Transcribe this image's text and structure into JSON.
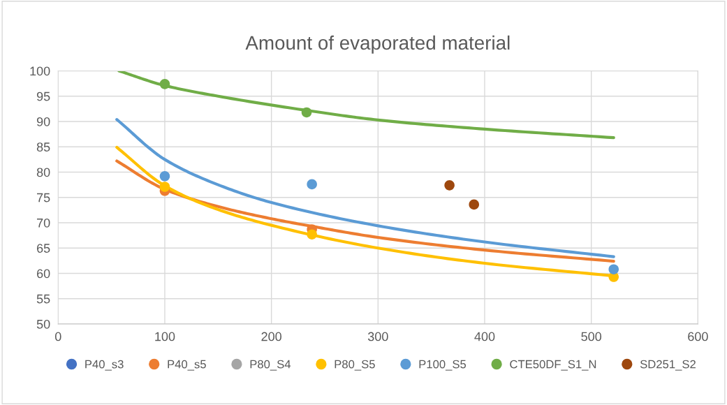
{
  "chart_data": {
    "type": "scatter",
    "title": "Amount of evaporated material",
    "xlim": [
      0,
      600
    ],
    "xticks": [
      0,
      100,
      200,
      300,
      400,
      500,
      600
    ],
    "ylim": [
      50,
      100
    ],
    "yticks": [
      50,
      55,
      60,
      65,
      70,
      75,
      80,
      85,
      90,
      95,
      100
    ],
    "grid": true,
    "legend": "bottom",
    "marker": "circle",
    "series": [
      {
        "type": "line",
        "color": "#ed7d31",
        "marker": "none",
        "x": [
          55,
          100,
          150,
          200,
          238,
          300,
          400,
          521
        ],
        "values": [
          82.2,
          76.6,
          73.2,
          70.8,
          69.3,
          67.1,
          64.6,
          62.4
        ]
      },
      {
        "type": "line",
        "color": "#ffc000",
        "marker": "none",
        "x": [
          55,
          100,
          150,
          200,
          300,
          400,
          521
        ],
        "values": [
          84.9,
          77.3,
          72.6,
          69.5,
          65.0,
          62.0,
          59.5
        ]
      },
      {
        "type": "line",
        "color": "#5b9bd5",
        "marker": "none",
        "x": [
          55,
          100,
          150,
          200,
          300,
          400,
          521
        ],
        "values": [
          90.4,
          82.5,
          77.5,
          74.0,
          69.4,
          66.2,
          63.3
        ]
      },
      {
        "type": "line",
        "color": "#70ad47",
        "marker": "none",
        "x": [
          57,
          100,
          150,
          233,
          300,
          400,
          521
        ],
        "values": [
          100,
          97.1,
          95.0,
          92.2,
          90.3,
          88.5,
          86.8
        ]
      },
      {
        "name": "P40_s3",
        "color": "#4472c4"
      },
      {
        "name": "P40_s5",
        "color": "#ed7d31",
        "x": [
          100,
          238
        ],
        "values": [
          76.3,
          68.7
        ]
      },
      {
        "name": "P80_S4",
        "color": "#a5a5a5"
      },
      {
        "name": "P80_S5",
        "color": "#ffc000",
        "x": [
          100,
          238,
          521
        ],
        "values": [
          77.1,
          67.7,
          59.3
        ]
      },
      {
        "name": "P100_S5",
        "color": "#5b9bd5",
        "x": [
          100,
          238,
          521
        ],
        "values": [
          79.2,
          77.6,
          60.8
        ]
      },
      {
        "name": "CTE50DF_S1_N",
        "color": "#70ad47",
        "x": [
          100,
          233
        ],
        "values": [
          97.4,
          91.8
        ]
      },
      {
        "name": "SD251_S2",
        "color": "#9e480e",
        "x": [
          367,
          390
        ],
        "values": [
          77.4,
          73.6
        ]
      }
    ]
  }
}
